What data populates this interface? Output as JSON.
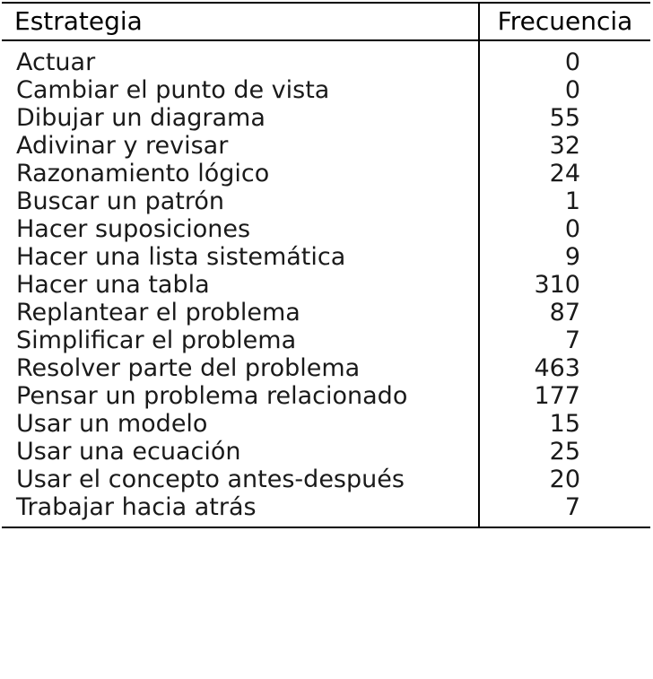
{
  "table": {
    "headers": {
      "strategy": "Estrategia",
      "frequency": "Frecuencia"
    },
    "rows": [
      {
        "strategy": "Actuar",
        "frequency": "0"
      },
      {
        "strategy": "Cambiar el punto de vista",
        "frequency": "0"
      },
      {
        "strategy": "Dibujar un diagrama",
        "frequency": "55"
      },
      {
        "strategy": "Adivinar y revisar",
        "frequency": "32"
      },
      {
        "strategy": "Razonamiento lógico",
        "frequency": "24"
      },
      {
        "strategy": "Buscar un patrón",
        "frequency": "1"
      },
      {
        "strategy": "Hacer suposiciones",
        "frequency": "0"
      },
      {
        "strategy": "Hacer una lista sistemática",
        "frequency": "9"
      },
      {
        "strategy": "Hacer una tabla",
        "frequency": "310"
      },
      {
        "strategy": "Replantear el problema",
        "frequency": "87"
      },
      {
        "strategy": "Simplificar el problema",
        "frequency": "7"
      },
      {
        "strategy": "Resolver parte del problema",
        "frequency": "463"
      },
      {
        "strategy": "Pensar un problema relacionado",
        "frequency": "177"
      },
      {
        "strategy": "Usar un modelo",
        "frequency": "15"
      },
      {
        "strategy": "Usar una ecuación",
        "frequency": "25"
      },
      {
        "strategy": "Usar el concepto antes-después",
        "frequency": "20"
      },
      {
        "strategy": "Trabajar hacia atrás",
        "frequency": "7"
      }
    ]
  }
}
